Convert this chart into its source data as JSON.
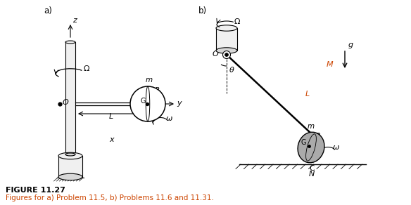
{
  "fig_width": 5.84,
  "fig_height": 2.92,
  "background_color": "#ffffff",
  "label_a": "a)",
  "label_b": "b)",
  "caption_title": "FIGURE 11.27",
  "caption_text": "Figures for a) Problem 11.5, b) Problems 11.6 and 11.31.",
  "text_color": "#000000",
  "orange_color": "#cc4400",
  "shaft_face": "#f0f0f0",
  "shaft_edge": "#000000",
  "disk_gray": "#888888"
}
